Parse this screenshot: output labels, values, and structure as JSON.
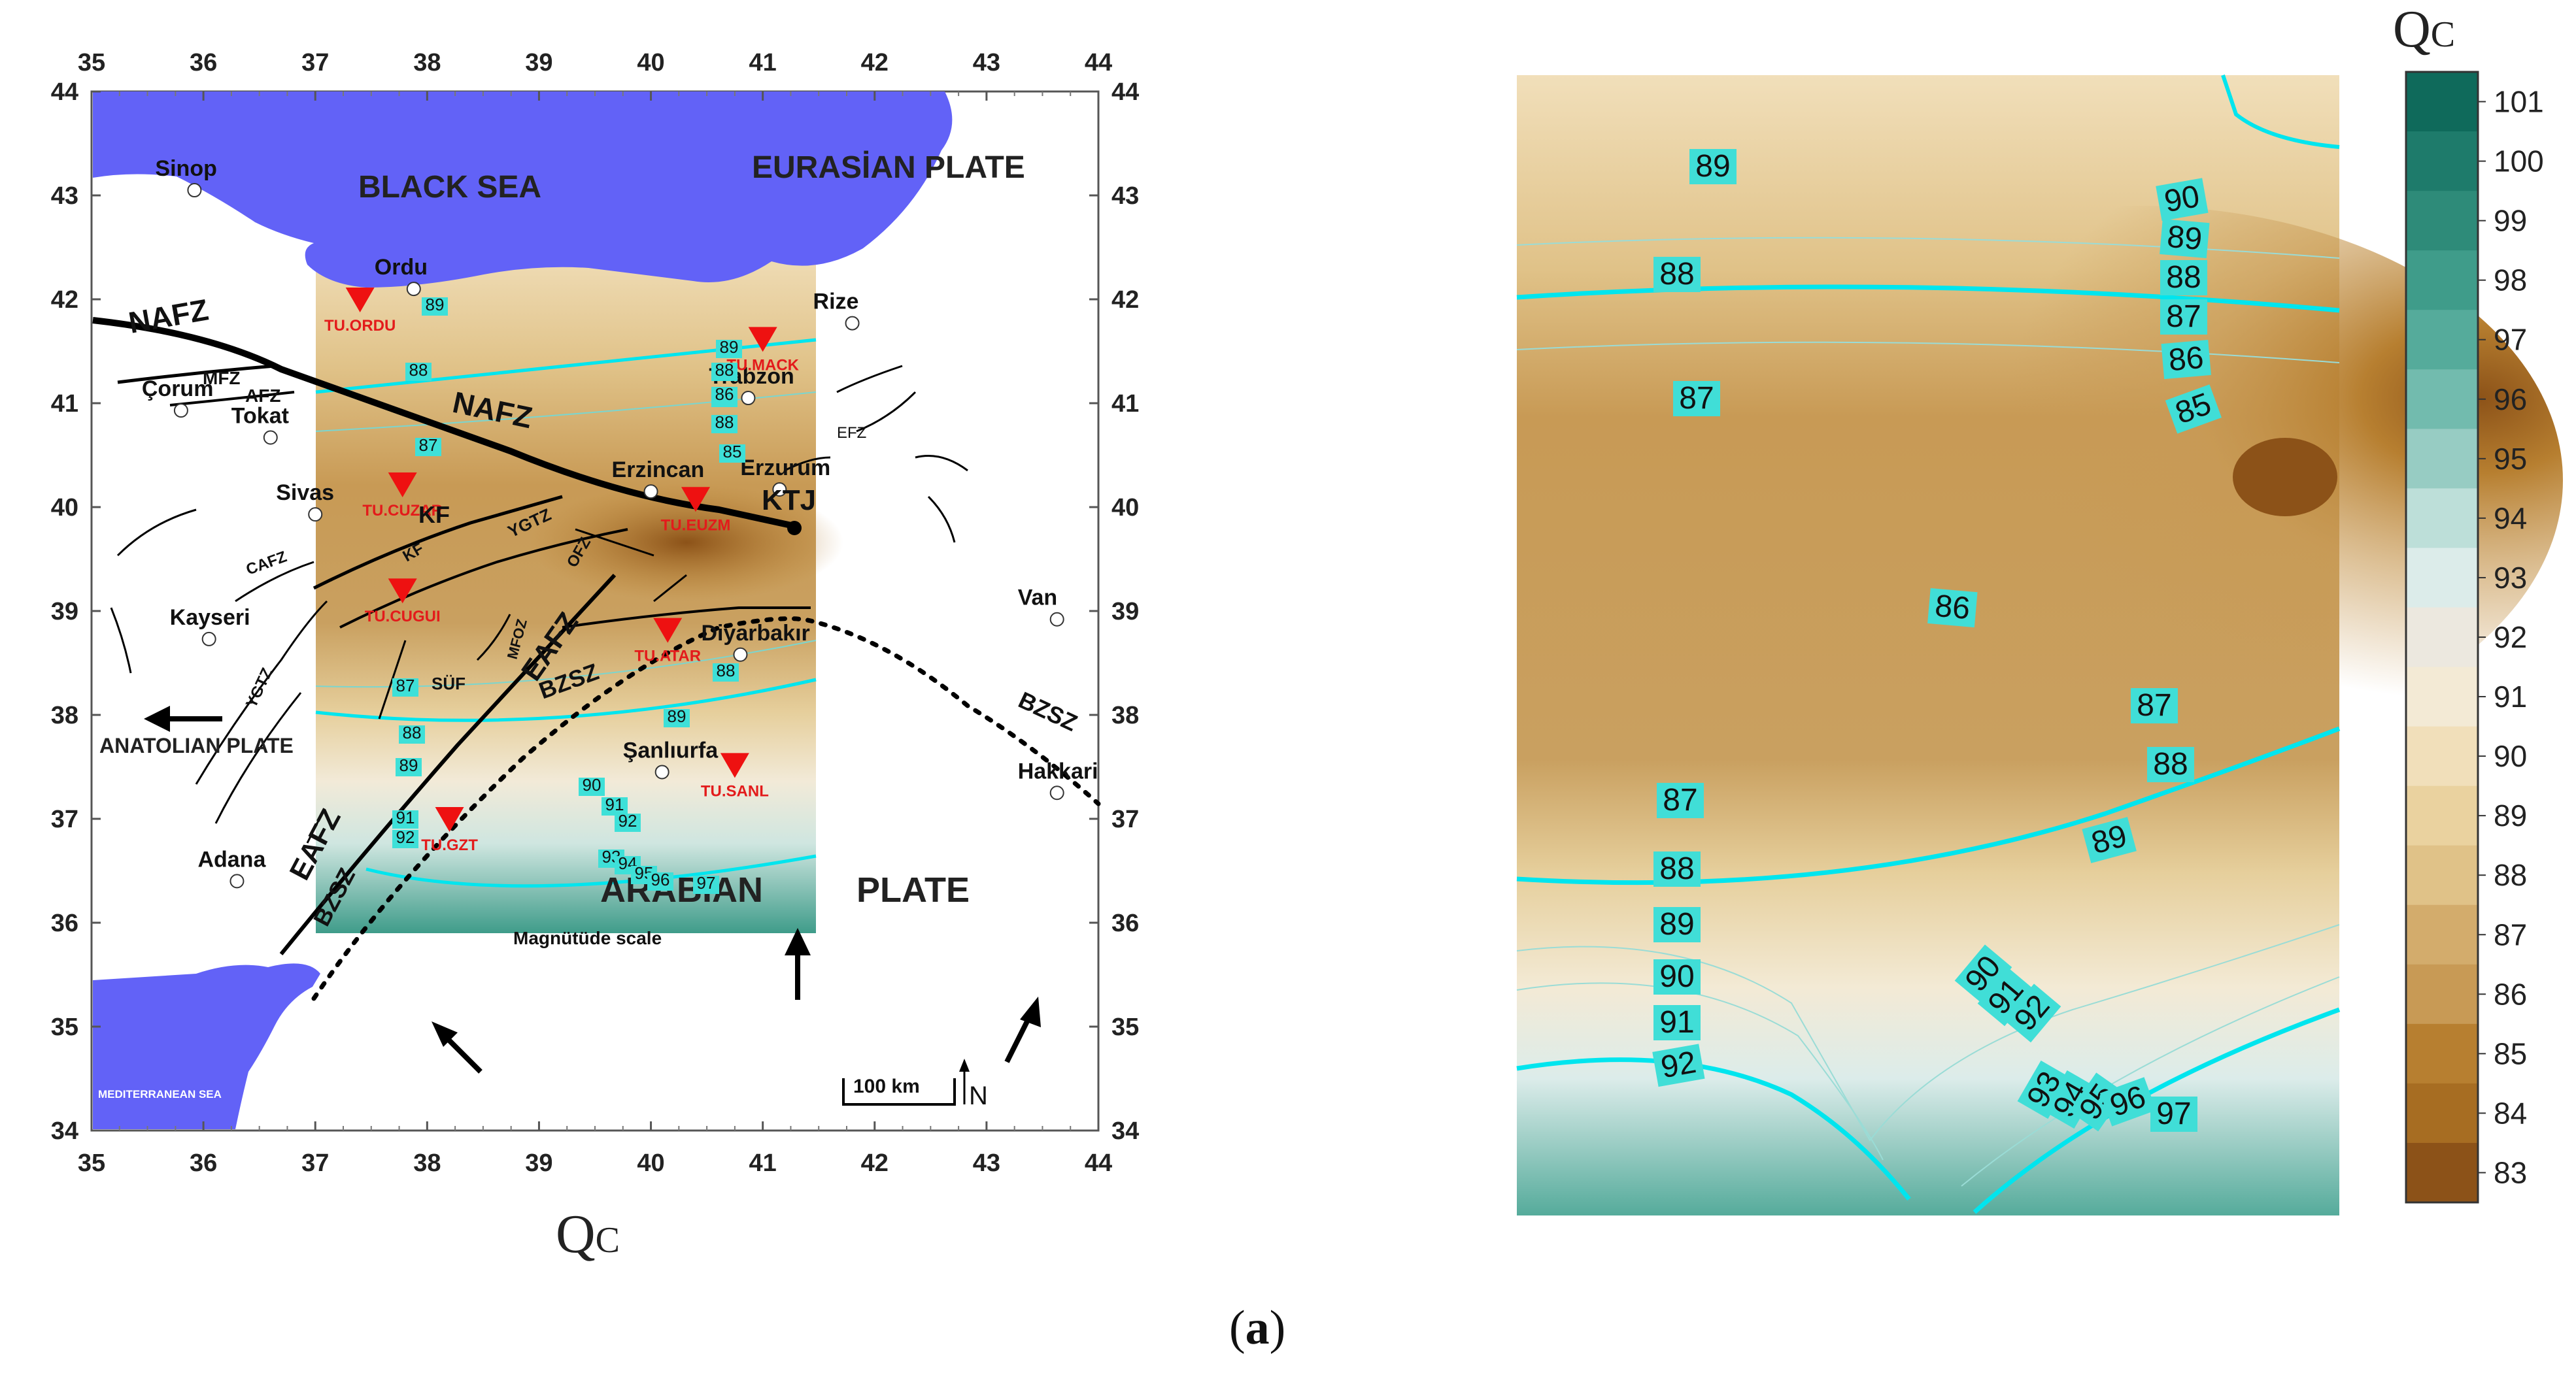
{
  "panel_label": "a",
  "map": {
    "caption": "Qc",
    "lon_ticks": [
      35,
      36,
      37,
      38,
      39,
      40,
      41,
      42,
      43,
      44
    ],
    "lat_ticks": [
      44,
      43,
      42,
      41,
      40,
      39,
      38,
      37,
      36,
      35,
      34
    ],
    "regions": {
      "black_sea": "BLACK SEA",
      "eurasian_plate": "EURASİAN PLATE",
      "anatolian_plate": "ANATOLIAN PLATE",
      "arabian": "ARABIAN",
      "plate": "PLATE",
      "mediterranean": "MEDITERRANEAN SEA"
    },
    "cities": [
      {
        "name": "Sinop",
        "lon": 35.92,
        "lat": 43.05
      },
      {
        "name": "Ordu",
        "lon": 37.88,
        "lat": 42.1
      },
      {
        "name": "Trabzon",
        "lon": 40.87,
        "lat": 41.05
      },
      {
        "name": "Rize",
        "lon": 41.8,
        "lat": 41.77
      },
      {
        "name": "Çorum",
        "lon": 35.8,
        "lat": 40.93
      },
      {
        "name": "Tokat",
        "lon": 36.6,
        "lat": 40.67
      },
      {
        "name": "Sivas",
        "lon": 37.0,
        "lat": 39.93
      },
      {
        "name": "Erzincan",
        "lon": 40.0,
        "lat": 40.15
      },
      {
        "name": "Erzurum",
        "lon": 41.15,
        "lat": 40.17
      },
      {
        "name": "Kayseri",
        "lon": 36.05,
        "lat": 38.73
      },
      {
        "name": "Diyarbakır",
        "lon": 40.8,
        "lat": 38.58
      },
      {
        "name": "Şanlıurfa",
        "lon": 40.1,
        "lat": 37.45
      },
      {
        "name": "Van",
        "lon": 43.63,
        "lat": 38.92
      },
      {
        "name": "Hakkari",
        "lon": 43.63,
        "lat": 37.25
      },
      {
        "name": "Adana",
        "lon": 36.3,
        "lat": 36.4
      }
    ],
    "stations": [
      {
        "name": "TU.ORDU",
        "lon": 37.4,
        "lat": 42.0
      },
      {
        "name": "TU.MACK",
        "lon": 41.0,
        "lat": 41.62
      },
      {
        "name": "TU.CUZAR",
        "lon": 37.78,
        "lat": 40.22
      },
      {
        "name": "TU.EUZM",
        "lon": 40.4,
        "lat": 40.08
      },
      {
        "name": "TU.CUGUI",
        "lon": 37.78,
        "lat": 39.2
      },
      {
        "name": "TU.ATAR",
        "lon": 40.15,
        "lat": 38.82
      },
      {
        "name": "TU.SANL",
        "lon": 40.75,
        "lat": 37.52
      },
      {
        "name": "TU.GZT",
        "lon": 38.2,
        "lat": 37.0
      }
    ],
    "faults": [
      "NAFZ",
      "NAFZ",
      "MFZ",
      "AFZ",
      "KF",
      "KF",
      "YGTZ",
      "OFZ",
      "CAFZ",
      "YGTZ",
      "MFOZ",
      "EAFZ",
      "EAFZ",
      "BZSZ",
      "BZSZ",
      "BZSZ",
      "SÜF",
      "EFZ"
    ],
    "junction": "KTJ",
    "scale": {
      "label": "Magnütüde scale"
    },
    "scalebar": "100 km",
    "north": "N",
    "inset_labels": [
      "89",
      "88",
      "89",
      "88",
      "87",
      "86",
      "85",
      "88",
      "87",
      "86",
      "87",
      "88",
      "89",
      "88",
      "89",
      "90",
      "91",
      "92",
      "93",
      "94",
      "95",
      "96",
      "97",
      "91",
      "92"
    ]
  },
  "contour_panel": {
    "labels": [
      "89",
      "90",
      "89",
      "88",
      "88",
      "87",
      "86",
      "85",
      "87",
      "86",
      "87",
      "88",
      "87",
      "89",
      "88",
      "89",
      "90",
      "91",
      "92",
      "90",
      "91",
      "92",
      "93",
      "94",
      "95",
      "96",
      "97"
    ]
  },
  "colorbar": {
    "title": "Qc",
    "ticks": [
      "101",
      "100",
      "99",
      "98",
      "97",
      "96",
      "95",
      "94",
      "93",
      "92",
      "91",
      "90",
      "89",
      "88",
      "87",
      "86",
      "85",
      "84",
      "83"
    ],
    "colors": [
      "#0f6a5b",
      "#1e7b6b",
      "#2e8b79",
      "#3f9c8a",
      "#55ab9b",
      "#72bbae",
      "#97ccc3",
      "#bddfd9",
      "#dcecea",
      "#ece8df",
      "#f3ead5",
      "#f1dfba",
      "#ead29f",
      "#e0c288",
      "#d3ac6c",
      "#c89a55",
      "#b77f30",
      "#a76d22",
      "#8c5218"
    ]
  }
}
